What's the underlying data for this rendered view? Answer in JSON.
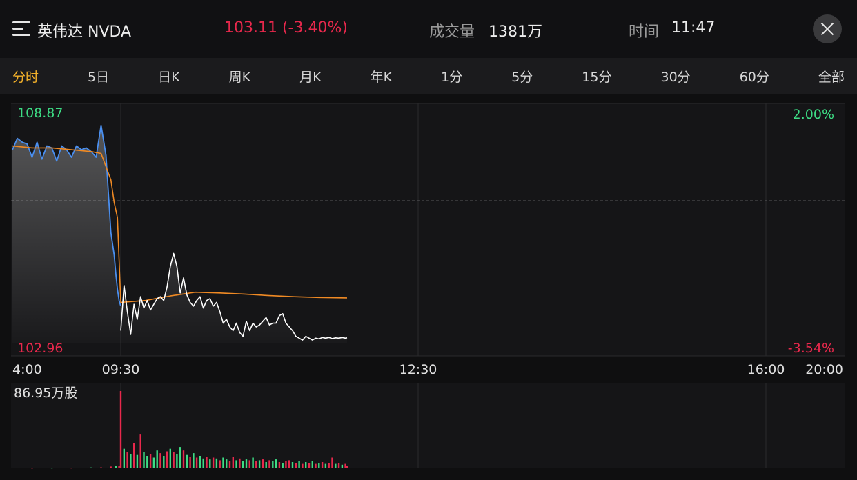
{
  "header": {
    "stock_name": "英伟达 NVDA",
    "price": "103.11 (-3.40%)",
    "volume_label": "成交量",
    "volume_value": "1381万",
    "time_label": "时间",
    "time_value": "11:47"
  },
  "tabs": [
    {
      "label": "分时",
      "active": true
    },
    {
      "label": "5日"
    },
    {
      "label": "日K"
    },
    {
      "label": "周K"
    },
    {
      "label": "月K"
    },
    {
      "label": "年K"
    },
    {
      "label": "1分"
    },
    {
      "label": "5分"
    },
    {
      "label": "15分"
    },
    {
      "label": "30分"
    },
    {
      "label": "60分"
    },
    {
      "label": "全部"
    }
  ],
  "colors": {
    "up": "#e8284c",
    "down": "#3ddc84",
    "pct_up": "#3ddc84",
    "premarket_line": "#4a8ff0",
    "price_line": "#ffffff",
    "avg_line": "#f08a24",
    "accent_tab": "#f3b12a"
  },
  "chart_data": [
    {
      "type": "line",
      "title": "",
      "y_max_label": "108.87",
      "y_min_label": "102.96",
      "pct_max_label": "2.00%",
      "pct_min_label": "-3.54%",
      "ylim": [
        102.96,
        108.87
      ],
      "reference_price": 106.74,
      "x_tick_labels": [
        "4:00",
        "09:30",
        "12:30",
        "16:00",
        "20:00"
      ],
      "grid": true,
      "series": [
        {
          "name": "",
          "session": "premarket",
          "color": "#4a8ff0",
          "x": [
            "04:00",
            "04:15",
            "04:30",
            "04:45",
            "05:00",
            "05:15",
            "05:30",
            "05:45",
            "06:00",
            "06:15",
            "06:30",
            "06:45",
            "07:00",
            "07:15",
            "07:30",
            "07:45",
            "08:00",
            "08:15",
            "08:30",
            "08:45",
            "09:00",
            "09:10",
            "09:15",
            "09:20",
            "09:25",
            "09:30"
          ],
          "y": [
            108.1,
            108.4,
            108.3,
            108.25,
            107.9,
            108.3,
            107.85,
            108.2,
            108.15,
            107.8,
            108.2,
            108.1,
            107.9,
            108.2,
            108.1,
            108.15,
            108.05,
            107.9,
            108.75,
            107.95,
            105.9,
            105.3,
            104.8,
            104.4,
            104.1,
            103.95
          ]
        },
        {
          "name": "",
          "session": "regular",
          "color": "#ffffff",
          "x": [
            "09:30",
            "09:32",
            "09:34",
            "09:36",
            "09:38",
            "09:40",
            "09:42",
            "09:44",
            "09:46",
            "09:48",
            "09:50",
            "09:52",
            "09:54",
            "09:56",
            "09:58",
            "10:00",
            "10:02",
            "10:04",
            "10:06",
            "10:08",
            "10:10",
            "10:12",
            "10:14",
            "10:16",
            "10:18",
            "10:20",
            "10:22",
            "10:24",
            "10:26",
            "10:28",
            "10:30",
            "10:32",
            "10:34",
            "10:36",
            "10:38",
            "10:40",
            "10:42",
            "10:44",
            "10:46",
            "10:48",
            "10:50",
            "10:52",
            "10:54",
            "10:56",
            "10:58",
            "11:00",
            "11:02",
            "11:04",
            "11:06",
            "11:08",
            "11:10",
            "11:12",
            "11:14",
            "11:16",
            "11:18",
            "11:20",
            "11:22",
            "11:24",
            "11:26",
            "11:28",
            "11:30",
            "11:32",
            "11:34",
            "11:36",
            "11:38",
            "11:40",
            "11:42",
            "11:44",
            "11:46",
            "11:47"
          ],
          "y": [
            103.3,
            104.5,
            103.8,
            103.2,
            104.0,
            103.6,
            104.2,
            103.9,
            104.1,
            103.85,
            104.0,
            104.15,
            104.2,
            104.1,
            104.45,
            105.0,
            105.35,
            105.0,
            104.3,
            104.7,
            104.25,
            104.05,
            103.95,
            104.1,
            104.2,
            103.9,
            104.1,
            104.15,
            103.95,
            104.05,
            103.8,
            103.5,
            103.6,
            103.4,
            103.3,
            103.5,
            103.25,
            103.15,
            103.55,
            103.3,
            103.5,
            103.4,
            103.45,
            103.55,
            103.65,
            103.45,
            103.5,
            103.5,
            103.7,
            103.75,
            103.5,
            103.4,
            103.3,
            103.15,
            103.1,
            103.05,
            103.15,
            103.1,
            103.05,
            103.1,
            103.08,
            103.12,
            103.1,
            103.12,
            103.09,
            103.11,
            103.1,
            103.12,
            103.1,
            103.11
          ]
        },
        {
          "name": "",
          "session": "average",
          "color": "#f08a24",
          "x": [
            "04:00",
            "05:00",
            "06:00",
            "07:00",
            "08:00",
            "08:30",
            "09:00",
            "09:10",
            "09:20",
            "09:30",
            "09:45",
            "10:00",
            "10:15",
            "10:30",
            "10:45",
            "11:00",
            "11:15",
            "11:30",
            "11:47"
          ],
          "y": [
            108.2,
            108.15,
            108.15,
            108.1,
            108.05,
            108.0,
            107.3,
            106.7,
            106.3,
            104.05,
            104.1,
            104.22,
            104.32,
            104.3,
            104.27,
            104.23,
            104.2,
            104.18,
            104.17
          ]
        }
      ]
    },
    {
      "type": "bar",
      "title": "",
      "y_max_label": "86.95万股",
      "ylim": [
        0,
        86.95
      ],
      "unit": "万股",
      "x_tick_labels": [],
      "series": [
        {
          "name": "",
          "session": "premarket",
          "x": [
            "04:00",
            "05:00",
            "06:00",
            "07:00",
            "08:00",
            "08:30",
            "09:00",
            "09:15",
            "09:25"
          ],
          "values": [
            0.6,
            0.4,
            0.5,
            0.5,
            1.0,
            1.2,
            2.0,
            2.6,
            3.0
          ],
          "colors": [
            "down",
            "up",
            "down",
            "up",
            "down",
            "up",
            "up",
            "down",
            "up"
          ]
        },
        {
          "name": "",
          "session": "regular",
          "x": [
            "09:30",
            "09:32",
            "09:34",
            "09:36",
            "09:38",
            "09:40",
            "09:42",
            "09:44",
            "09:46",
            "09:48",
            "09:50",
            "09:52",
            "09:54",
            "09:56",
            "09:58",
            "10:00",
            "10:02",
            "10:04",
            "10:06",
            "10:08",
            "10:10",
            "10:12",
            "10:14",
            "10:16",
            "10:18",
            "10:20",
            "10:22",
            "10:24",
            "10:26",
            "10:28",
            "10:30",
            "10:32",
            "10:34",
            "10:36",
            "10:38",
            "10:40",
            "10:42",
            "10:44",
            "10:46",
            "10:48",
            "10:50",
            "10:52",
            "10:54",
            "10:56",
            "10:58",
            "11:00",
            "11:02",
            "11:04",
            "11:06",
            "11:08",
            "11:10",
            "11:12",
            "11:14",
            "11:16",
            "11:18",
            "11:20",
            "11:22",
            "11:24",
            "11:26",
            "11:28",
            "11:30",
            "11:32",
            "11:34",
            "11:36",
            "11:38",
            "11:40",
            "11:42",
            "11:44",
            "11:46",
            "11:47"
          ],
          "values": [
            86.95,
            22,
            18,
            16,
            28,
            15,
            38,
            18,
            14,
            16,
            12,
            20,
            17,
            14,
            19,
            22,
            18,
            16,
            24,
            20,
            15,
            13,
            17,
            12,
            14,
            11,
            13,
            10,
            12,
            11,
            9,
            12,
            10,
            8,
            13,
            9,
            11,
            8,
            10,
            9,
            12,
            8,
            9,
            10,
            7,
            9,
            8,
            10,
            7,
            6,
            8,
            9,
            7,
            6,
            8,
            5,
            7,
            6,
            8,
            5,
            6,
            7,
            5,
            6,
            12,
            5,
            6,
            4,
            5,
            3
          ],
          "colors": [
            "up",
            "down",
            "up",
            "down",
            "up",
            "down",
            "up",
            "down",
            "down",
            "up",
            "down",
            "down",
            "up",
            "down",
            "up",
            "down",
            "up",
            "down",
            "down",
            "up",
            "down",
            "up",
            "down",
            "up",
            "down",
            "down",
            "up",
            "down",
            "up",
            "down",
            "up",
            "down",
            "down",
            "up",
            "up",
            "down",
            "up",
            "down",
            "down",
            "up",
            "down",
            "up",
            "down",
            "up",
            "down",
            "up",
            "down",
            "down",
            "up",
            "down",
            "up",
            "up",
            "down",
            "up",
            "down",
            "up",
            "down",
            "up",
            "down",
            "up",
            "down",
            "up",
            "down",
            "up",
            "up",
            "down",
            "up",
            "down",
            "up",
            "up"
          ]
        }
      ]
    }
  ]
}
